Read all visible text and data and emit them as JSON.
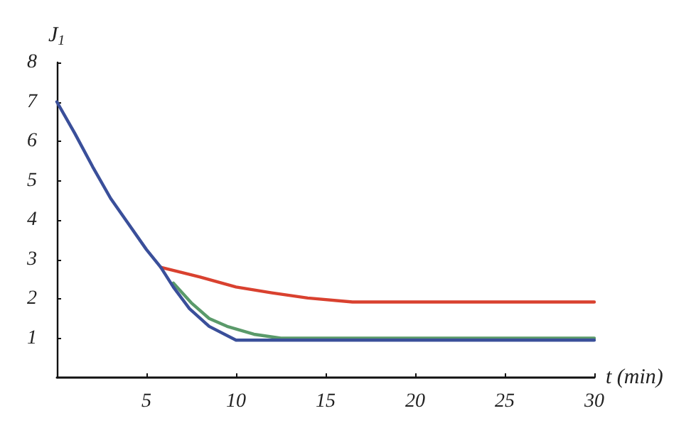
{
  "chart_data": {
    "type": "line",
    "xlabel": "t (min)",
    "ylabel": "J$_{1}$",
    "xlim": [
      0,
      30
    ],
    "xticks": [
      5,
      10,
      15,
      20,
      25,
      30
    ],
    "ylim": [
      0,
      8
    ],
    "yticks": [
      1,
      2,
      3,
      4,
      5,
      6,
      7,
      8
    ],
    "grid": false,
    "series": [
      {
        "color": "#d9412f",
        "x": [
          5.8,
          8,
          10,
          12,
          14,
          16.5,
          20,
          25,
          30
        ],
        "values": [
          2.8,
          2.55,
          2.3,
          2.15,
          2.02,
          1.92,
          1.92,
          1.92,
          1.92
        ]
      },
      {
        "color": "#5a9a6a",
        "x": [
          6.5,
          7.5,
          8.5,
          9.5,
          11,
          12.5,
          15,
          20,
          25,
          30
        ],
        "values": [
          2.4,
          1.9,
          1.5,
          1.3,
          1.1,
          1.0,
          1.0,
          1.0,
          1.0,
          1.0
        ]
      },
      {
        "color": "#3a4f9a",
        "x": [
          0,
          1,
          2,
          3,
          4,
          5,
          5.8,
          6.5,
          7.4,
          8.5,
          10,
          15,
          20,
          25,
          30
        ],
        "values": [
          7,
          6.2,
          5.35,
          4.55,
          3.9,
          3.25,
          2.8,
          2.3,
          1.75,
          1.3,
          0.95,
          0.95,
          0.95,
          0.95,
          0.95
        ]
      }
    ]
  }
}
